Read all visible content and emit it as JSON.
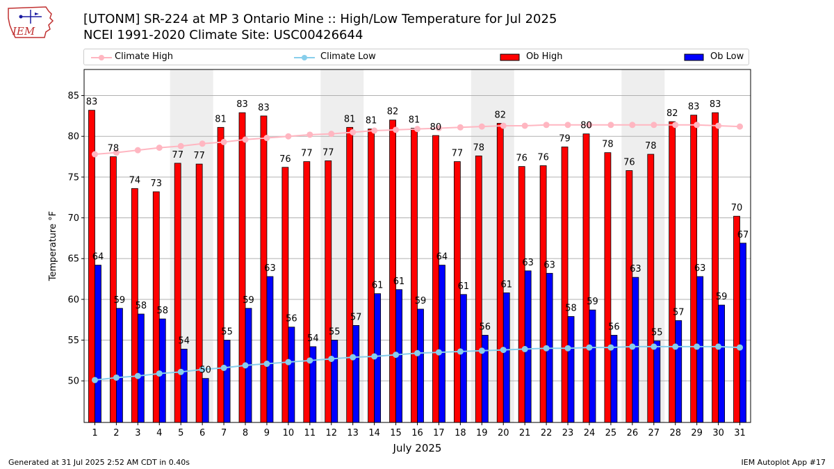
{
  "header": {
    "title_line1": "[UTONM] SR-224 at MP 3 Ontario Mine  :: High/Low Temperature for Jul 2025",
    "title_line2": "NCEI 1991-2020 Climate Site: USC00426644",
    "logo_text": "IEM",
    "logo_icon": "iowa-weather-station-logo"
  },
  "footer": {
    "left": "Generated at 31 Jul 2025 2:52 AM CDT in 0.40s",
    "right": "IEM Autoplot App #17"
  },
  "colors": {
    "ob_high": "#ff0000",
    "ob_low": "#0000ff",
    "climate_high": "#ffb6c1",
    "climate_low": "#87ceeb",
    "weekend_shade": "#eeeeee",
    "grid": "#b0b0b0"
  },
  "chart_data": {
    "type": "bar",
    "title": "[UTONM] SR-224 at MP 3 Ontario Mine  :: High/Low Temperature for Jul 2025",
    "subtitle": "NCEI 1991-2020 Climate Site: USC00426644",
    "xlabel": "July 2025",
    "ylabel": "Temperature °F",
    "ylim": [
      44.9,
      88.2
    ],
    "yticks": [
      50,
      55,
      60,
      65,
      70,
      75,
      80,
      85
    ],
    "grid": "horizontal",
    "legend_placement": "top",
    "categories": [
      "1",
      "2",
      "3",
      "4",
      "5",
      "6",
      "7",
      "8",
      "9",
      "10",
      "11",
      "12",
      "13",
      "14",
      "15",
      "16",
      "17",
      "18",
      "19",
      "20",
      "21",
      "22",
      "23",
      "24",
      "25",
      "26",
      "27",
      "28",
      "29",
      "30",
      "31"
    ],
    "shaded_days": [
      [
        5,
        6
      ],
      [
        12,
        13
      ],
      [
        19,
        20
      ],
      [
        26,
        27
      ]
    ],
    "series": [
      {
        "name": "Ob High",
        "kind": "bar",
        "values": [
          83,
          78,
          74,
          73,
          77,
          77,
          81,
          83,
          83,
          76,
          77,
          77,
          81,
          81,
          82,
          81,
          80,
          77,
          78,
          82,
          76,
          76,
          79,
          80,
          78,
          76,
          78,
          82,
          83,
          83,
          70
        ],
        "plotted": [
          83.2,
          77.5,
          73.6,
          73.2,
          76.7,
          76.6,
          81.1,
          82.9,
          82.5,
          76.2,
          76.9,
          77.0,
          81.1,
          80.9,
          82.0,
          81.0,
          80.1,
          76.9,
          77.6,
          81.6,
          76.3,
          76.4,
          78.7,
          80.3,
          78.0,
          75.8,
          77.8,
          81.8,
          82.6,
          82.9,
          70.2
        ]
      },
      {
        "name": "Ob Low",
        "kind": "bar",
        "values": [
          64,
          59,
          58,
          58,
          54,
          50,
          55,
          59,
          63,
          56,
          54,
          55,
          57,
          61,
          61,
          59,
          64,
          61,
          56,
          61,
          63,
          63,
          58,
          59,
          56,
          63,
          55,
          57,
          63,
          59,
          67
        ],
        "plotted": [
          64.2,
          58.9,
          58.2,
          57.6,
          53.9,
          50.3,
          55.0,
          58.9,
          62.8,
          56.6,
          54.2,
          55.0,
          56.8,
          60.7,
          61.2,
          58.8,
          64.2,
          60.6,
          55.6,
          60.8,
          63.5,
          63.2,
          57.9,
          58.7,
          55.6,
          62.7,
          54.9,
          57.4,
          62.8,
          59.3,
          66.9
        ]
      },
      {
        "name": "Climate High",
        "kind": "line",
        "values": [
          77.8,
          78.0,
          78.3,
          78.6,
          78.8,
          79.1,
          79.3,
          79.6,
          79.8,
          80.0,
          80.2,
          80.3,
          80.5,
          80.7,
          80.8,
          80.9,
          81.0,
          81.1,
          81.2,
          81.3,
          81.3,
          81.4,
          81.4,
          81.4,
          81.4,
          81.4,
          81.4,
          81.4,
          81.4,
          81.3,
          81.2
        ]
      },
      {
        "name": "Climate Low",
        "kind": "line",
        "values": [
          50.1,
          50.4,
          50.6,
          50.9,
          51.1,
          51.4,
          51.6,
          51.9,
          52.1,
          52.3,
          52.5,
          52.7,
          52.9,
          53.0,
          53.2,
          53.4,
          53.5,
          53.6,
          53.7,
          53.8,
          53.9,
          54.0,
          54.0,
          54.1,
          54.1,
          54.2,
          54.2,
          54.2,
          54.2,
          54.2,
          54.1
        ]
      }
    ]
  }
}
